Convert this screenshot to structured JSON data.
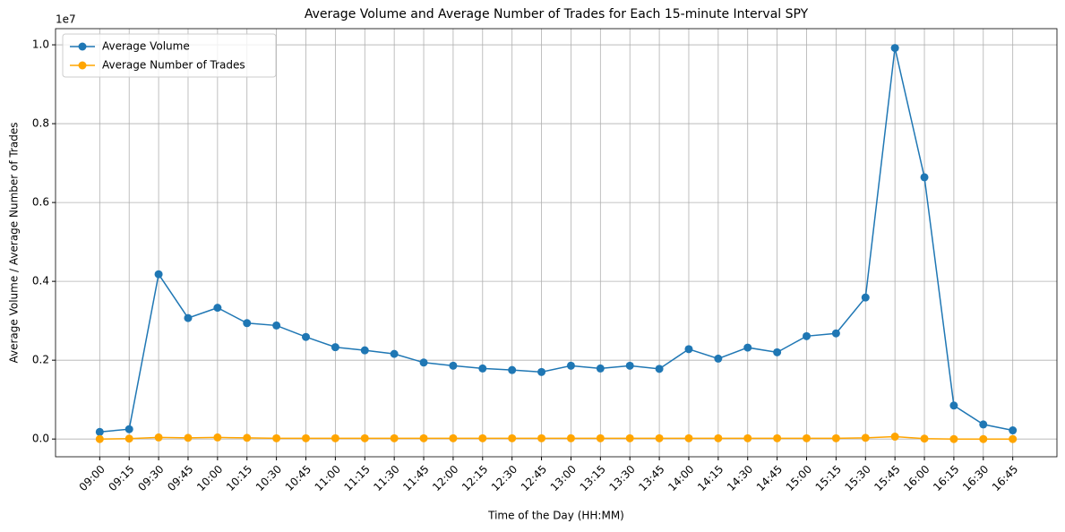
{
  "chart_data": {
    "type": "line",
    "title": "Average Volume and Average Number of Trades for Each 15-minute Interval SPY",
    "xlabel": "Time of the Day (HH:MM)",
    "ylabel": "Average Volume / Average Number of Trades",
    "y_offset_label": "1e7",
    "categories": [
      "09:00",
      "09:15",
      "09:30",
      "09:45",
      "10:00",
      "10:15",
      "10:30",
      "10:45",
      "11:00",
      "11:15",
      "11:30",
      "11:45",
      "12:00",
      "12:15",
      "12:30",
      "12:45",
      "13:00",
      "13:15",
      "13:30",
      "13:45",
      "14:00",
      "14:15",
      "14:30",
      "14:45",
      "15:00",
      "15:15",
      "15:30",
      "15:45",
      "16:00",
      "16:15",
      "16:30",
      "16:45"
    ],
    "series": [
      {
        "name": "Average Volume",
        "color": "#1f77b4",
        "values": [
          0.018,
          0.025,
          0.418,
          0.307,
          0.333,
          0.294,
          0.288,
          0.259,
          0.233,
          0.225,
          0.216,
          0.194,
          0.186,
          0.179,
          0.175,
          0.17,
          0.186,
          0.179,
          0.186,
          0.178,
          0.228,
          0.204,
          0.232,
          0.22,
          0.261,
          0.268,
          0.359,
          0.992,
          0.664,
          0.085,
          0.037,
          0.022
        ]
      },
      {
        "name": "Average Number of Trades",
        "color": "#ffa500",
        "values": [
          0.0,
          0.001,
          0.004,
          0.003,
          0.004,
          0.003,
          0.002,
          0.002,
          0.002,
          0.002,
          0.002,
          0.002,
          0.002,
          0.002,
          0.002,
          0.002,
          0.002,
          0.002,
          0.002,
          0.002,
          0.002,
          0.002,
          0.002,
          0.002,
          0.002,
          0.002,
          0.003,
          0.006,
          0.001,
          0.0,
          0.0,
          0.0
        ]
      }
    ],
    "ylim": [
      -0.045,
      1.041
    ],
    "yticks": [
      {
        "value": 0,
        "label": "0.0"
      },
      {
        "value": 0.2,
        "label": "0.2"
      },
      {
        "value": 0.4,
        "label": "0.4"
      },
      {
        "value": 0.6,
        "label": "0.6"
      },
      {
        "value": 0.8,
        "label": "0.8"
      },
      {
        "value": 1.0,
        "label": "1.0"
      }
    ],
    "grid": true,
    "legend": "upper left",
    "marker": "o"
  }
}
